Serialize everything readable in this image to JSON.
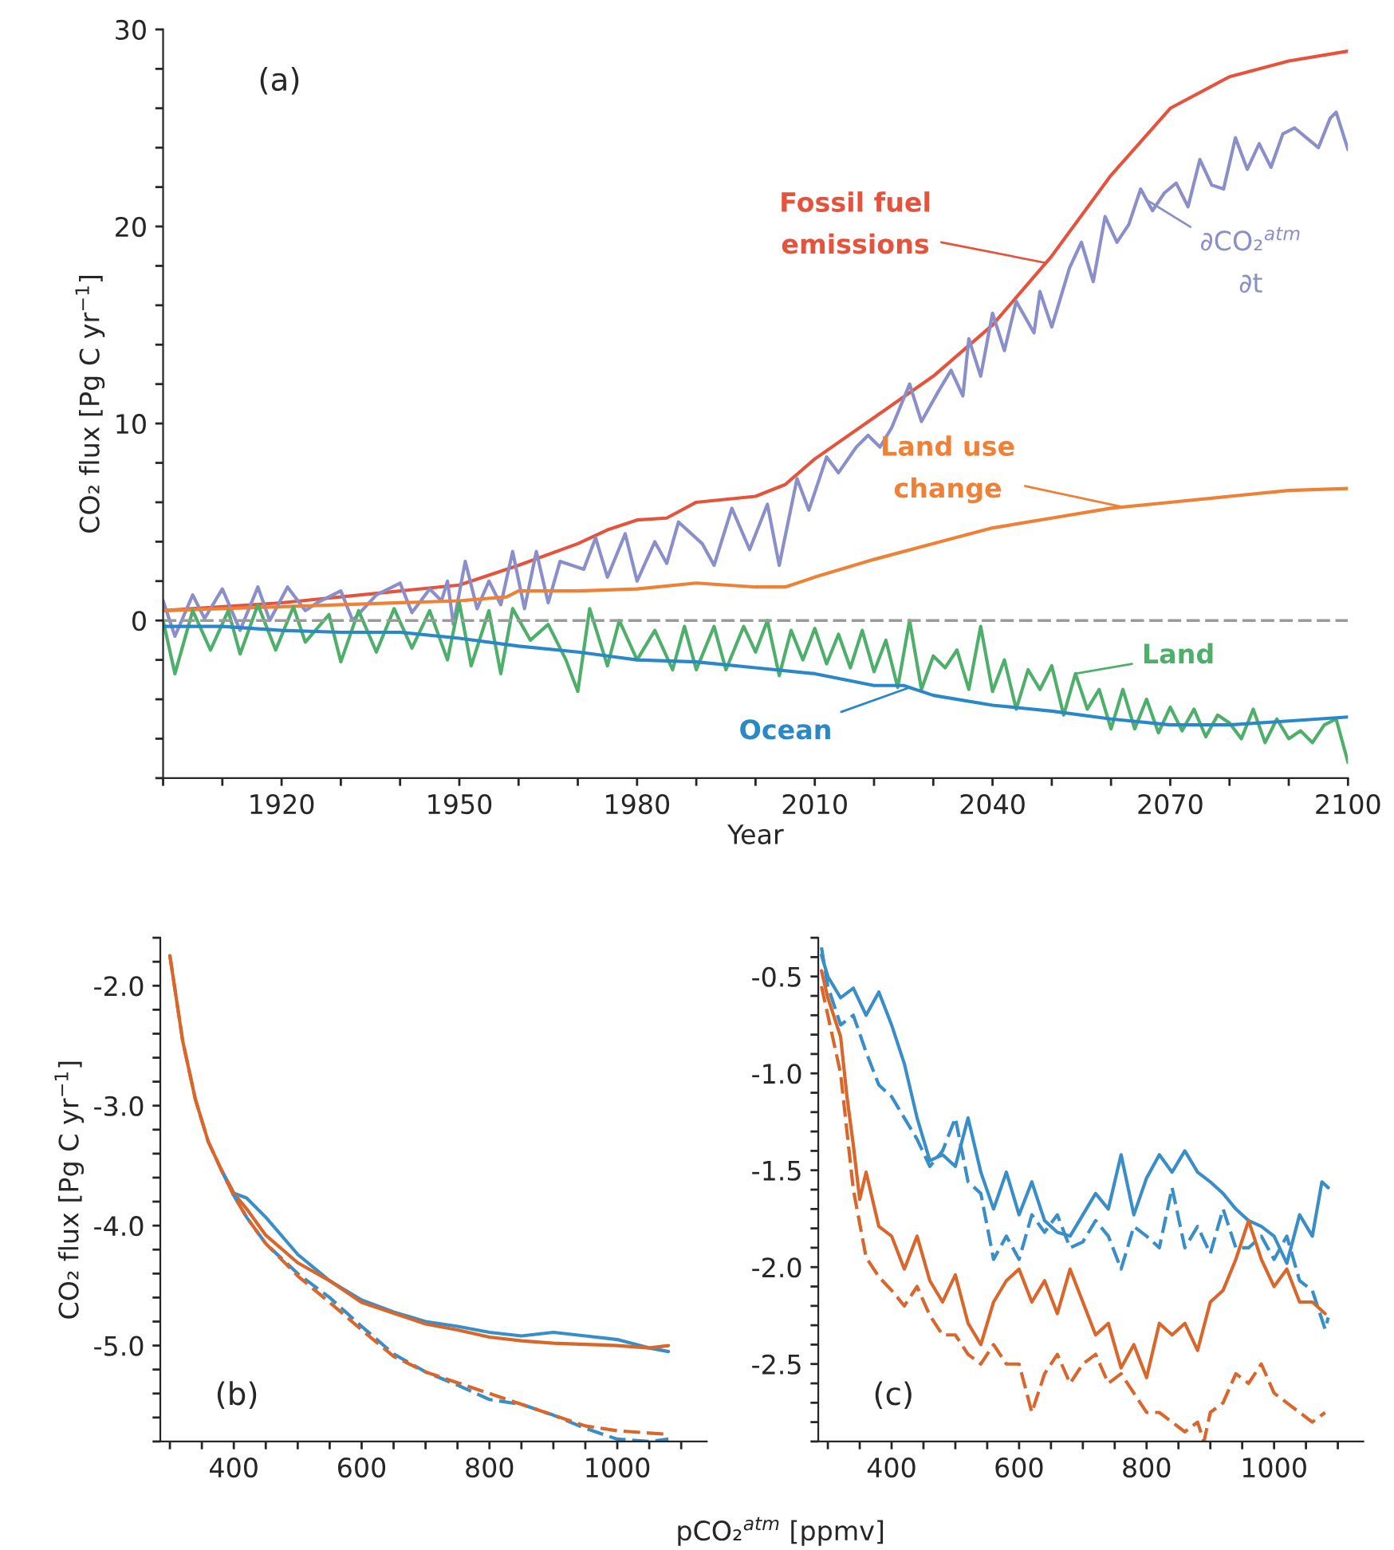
{
  "chart_data": [
    {
      "type": "line",
      "xlabel": "Year",
      "ylabel": "CO₂ flux [Pg C yr$^{−1}$]",
      "xlim": [
        1900,
        2100
      ],
      "ylim": [
        -8,
        30
      ],
      "xticks": [
        {
          "value": 1900,
          "label": null
        },
        {
          "value": 1910,
          "label": null
        },
        1920,
        {
          "value": 1930,
          "label": null
        },
        {
          "value": 1940,
          "label": null
        },
        1950,
        {
          "value": 1960,
          "label": null
        },
        {
          "value": 1970,
          "label": null
        },
        1980,
        {
          "value": 1990,
          "label": null
        },
        {
          "value": 2000,
          "label": null
        },
        2010,
        {
          "value": 2020,
          "label": null
        },
        {
          "value": 2030,
          "label": null
        },
        2040,
        {
          "value": 2050,
          "label": null
        },
        {
          "value": 2060,
          "label": null
        },
        2070,
        {
          "value": 2080,
          "label": null
        },
        {
          "value": 2090,
          "label": null
        },
        2100
      ],
      "yticks": [
        {
          "value": -8,
          "label": null
        },
        {
          "value": -6,
          "label": null
        },
        {
          "value": -4,
          "label": null
        },
        {
          "value": -2,
          "label": null
        },
        0,
        {
          "value": 2,
          "label": null
        },
        {
          "value": 4,
          "label": null
        },
        {
          "value": 6,
          "label": null
        },
        {
          "value": 8,
          "label": null
        },
        10,
        {
          "value": 12,
          "label": null
        },
        {
          "value": 14,
          "label": null
        },
        {
          "value": 16,
          "label": null
        },
        {
          "value": 18,
          "label": null
        },
        20,
        {
          "value": 22,
          "label": null
        },
        {
          "value": 24,
          "label": null
        },
        {
          "value": 26,
          "label": null
        },
        {
          "value": 28,
          "label": null
        },
        30
      ],
      "ref_lines": [
        {
          "axis": "y",
          "value": 0,
          "color": "#9a9a9a",
          "line_style": "dashed"
        }
      ],
      "annotations": [
        "(a)"
      ],
      "series": [
        {
          "name": "Fossil fuel\nemissions",
          "color": "#e5533c",
          "x": [
            1900,
            1920,
            1950,
            1960,
            1970,
            1975,
            1980,
            1985,
            1990,
            2000,
            2005,
            2010,
            2020,
            2030,
            2040,
            2050,
            2060,
            2070,
            2080,
            2090,
            2100
          ],
          "values": [
            0.5,
            0.9,
            1.8,
            2.8,
            3.9,
            4.6,
            5.1,
            5.2,
            6.0,
            6.3,
            6.9,
            8.2,
            10.3,
            12.4,
            15.0,
            18.5,
            22.6,
            26.0,
            27.6,
            28.4,
            28.9
          ]
        },
        {
          "name": "∂CO₂$^{atm}$\n∂t",
          "color": "#8a8fc9",
          "x": [
            1900,
            1902,
            1905,
            1907,
            1910,
            1913,
            1916,
            1918,
            1921,
            1924,
            1926,
            1930,
            1932,
            1936,
            1940,
            1942,
            1945,
            1947,
            1948,
            1949,
            1951,
            1953,
            1955,
            1957,
            1959,
            1961,
            1963,
            1965,
            1967,
            1971,
            1973,
            1975,
            1978,
            1980,
            1983,
            1985,
            1987,
            1991,
            1993,
            1996,
            1999,
            2002,
            2004,
            2007,
            2009,
            2012,
            2014,
            2017,
            2019,
            2021,
            2023,
            2026,
            2028,
            2031,
            2033,
            2035,
            2036,
            2038,
            2040,
            2042,
            2044,
            2047,
            2048,
            2050,
            2053,
            2055,
            2057,
            2059,
            2061,
            2063,
            2065,
            2067,
            2069,
            2071,
            2073,
            2075,
            2077,
            2079,
            2081,
            2083,
            2085,
            2087,
            2089,
            2091,
            2093,
            2095,
            2097,
            2098,
            2100
          ],
          "values": [
            1.0,
            -0.8,
            1.3,
            0.1,
            1.6,
            -0.5,
            1.7,
            0.0,
            1.7,
            0.5,
            0.9,
            1.5,
            0.0,
            1.3,
            1.9,
            0.4,
            1.6,
            1.0,
            2.0,
            -0.2,
            3.0,
            0.6,
            2.0,
            0.8,
            3.5,
            0.6,
            3.5,
            0.9,
            3.0,
            2.6,
            4.2,
            2.2,
            4.4,
            2.0,
            4.0,
            2.9,
            5.0,
            3.9,
            2.8,
            5.7,
            3.6,
            5.9,
            2.8,
            7.2,
            5.6,
            8.3,
            7.5,
            8.8,
            9.4,
            8.8,
            9.8,
            12.0,
            10.1,
            11.7,
            12.7,
            11.4,
            14.3,
            12.4,
            15.6,
            13.7,
            16.2,
            14.6,
            16.7,
            14.9,
            17.9,
            19.2,
            17.2,
            20.5,
            19.2,
            20.1,
            21.9,
            20.8,
            21.7,
            22.2,
            21.0,
            23.4,
            22.1,
            21.9,
            24.5,
            22.9,
            24.2,
            23.0,
            24.7,
            25.0,
            24.5,
            24.0,
            25.5,
            25.8,
            23.9
          ]
        },
        {
          "name": "Land use\nchange",
          "color": "#ee8135",
          "x": [
            1900,
            1950,
            1958,
            1960,
            1970,
            1980,
            1990,
            2000,
            2005,
            2010,
            2020,
            2030,
            2040,
            2050,
            2060,
            2070,
            2080,
            2090,
            2100
          ],
          "values": [
            0.5,
            1.0,
            1.2,
            1.5,
            1.5,
            1.6,
            1.9,
            1.7,
            1.7,
            2.2,
            3.1,
            3.9,
            4.7,
            5.2,
            5.7,
            6.0,
            6.3,
            6.6,
            6.7
          ]
        },
        {
          "name": "Land",
          "color": "#4daf6a",
          "x": [
            1900,
            1902,
            1905,
            1908,
            1911,
            1913,
            1916,
            1919,
            1922,
            1924,
            1928,
            1930,
            1933,
            1936,
            1939,
            1942,
            1945,
            1948,
            1950,
            1952,
            1955,
            1957,
            1959,
            1962,
            1965,
            1968,
            1970,
            1972,
            1975,
            1977,
            1980,
            1983,
            1986,
            1988,
            1990,
            1993,
            1995,
            1998,
            2000,
            2002,
            2004,
            2006,
            2008,
            2010,
            2012,
            2014,
            2016,
            2018,
            2020,
            2022,
            2024,
            2026,
            2028,
            2030,
            2032,
            2034,
            2036,
            2038,
            2040,
            2042,
            2044,
            2046,
            2048,
            2050,
            2052,
            2054,
            2056,
            2058,
            2060,
            2062,
            2064,
            2066,
            2068,
            2070,
            2072,
            2074,
            2076,
            2078,
            2080,
            2082,
            2084,
            2086,
            2088,
            2090,
            2092,
            2094,
            2096,
            2098,
            2100
          ],
          "values": [
            0.0,
            -2.7,
            0.5,
            -1.5,
            0.5,
            -1.7,
            0.8,
            -1.5,
            0.7,
            -1.1,
            0.3,
            -2.1,
            0.5,
            -1.6,
            0.6,
            -1.4,
            0.5,
            -2.0,
            0.9,
            -2.3,
            0.5,
            -2.7,
            0.6,
            -1.0,
            -0.2,
            -2.0,
            -3.6,
            0.6,
            -2.3,
            0.0,
            -2.0,
            -0.5,
            -2.5,
            -0.3,
            -2.5,
            -0.3,
            -2.5,
            -0.3,
            -1.6,
            0.0,
            -2.8,
            -0.5,
            -2.0,
            -0.4,
            -2.2,
            -0.7,
            -2.4,
            -0.5,
            -2.6,
            -1.0,
            -3.4,
            0.0,
            -3.5,
            -1.8,
            -2.4,
            -1.5,
            -3.5,
            -0.3,
            -3.6,
            -2.0,
            -4.5,
            -2.5,
            -3.5,
            -2.3,
            -4.8,
            -2.7,
            -4.5,
            -3.5,
            -5.5,
            -3.5,
            -5.5,
            -4.0,
            -5.7,
            -4.4,
            -5.6,
            -4.5,
            -5.9,
            -4.8,
            -5.2,
            -6.0,
            -4.5,
            -6.2,
            -5.0,
            -6.0,
            -5.6,
            -6.2,
            -5.3,
            -5.0,
            -7.2
          ]
        },
        {
          "name": "Ocean",
          "color": "#2a87c8",
          "x": [
            1900,
            1910,
            1920,
            1930,
            1940,
            1950,
            1960,
            1970,
            1980,
            1990,
            2000,
            2010,
            2020,
            2025,
            2030,
            2040,
            2050,
            2060,
            2070,
            2080,
            2090,
            2100
          ],
          "values": [
            -0.3,
            -0.3,
            -0.5,
            -0.6,
            -0.6,
            -0.9,
            -1.3,
            -1.6,
            -2.0,
            -2.1,
            -2.4,
            -2.7,
            -3.3,
            -3.3,
            -3.8,
            -4.3,
            -4.6,
            -5.0,
            -5.3,
            -5.3,
            -5.1,
            -4.9
          ]
        }
      ]
    },
    {
      "type": "line",
      "xlabel": "pCO₂$^{atm}$ [ppmv]",
      "ylabel": "CO₂ flux [Pg C yr$^{−1}$]",
      "xlim": [
        285,
        1140
      ],
      "ylim": [
        -5.8,
        -1.6
      ],
      "xticks": [
        {
          "value": 300,
          "label": null
        },
        {
          "value": 350,
          "label": null
        },
        400,
        {
          "value": 450,
          "label": null
        },
        {
          "value": 500,
          "label": null
        },
        {
          "value": 550,
          "label": null
        },
        600,
        {
          "value": 650,
          "label": null
        },
        {
          "value": 700,
          "label": null
        },
        {
          "value": 750,
          "label": null
        },
        800,
        {
          "value": 850,
          "label": null
        },
        {
          "value": 900,
          "label": null
        },
        {
          "value": 950,
          "label": null
        },
        1000,
        {
          "value": 1050,
          "label": null
        },
        {
          "value": 1100,
          "label": null
        }
      ],
      "yticks": [
        {
          "value": -5.8,
          "label": null
        },
        {
          "value": -5.6,
          "label": null
        },
        {
          "value": -5.4,
          "label": null
        },
        {
          "value": -5.2,
          "label": null
        },
        {
          "value": -5.0,
          "label": "-5.0"
        },
        {
          "value": -4.8,
          "label": null
        },
        {
          "value": -4.6,
          "label": null
        },
        {
          "value": -4.4,
          "label": null
        },
        {
          "value": -4.2,
          "label": null
        },
        {
          "value": -4.0,
          "label": "-4.0"
        },
        {
          "value": -3.8,
          "label": null
        },
        {
          "value": -3.6,
          "label": null
        },
        {
          "value": -3.4,
          "label": null
        },
        {
          "value": -3.2,
          "label": null
        },
        {
          "value": -3.0,
          "label": "-3.0"
        },
        {
          "value": -2.8,
          "label": null
        },
        {
          "value": -2.6,
          "label": null
        },
        {
          "value": -2.4,
          "label": null
        },
        {
          "value": -2.2,
          "label": null
        },
        {
          "value": -2.0,
          "label": "-2.0"
        },
        {
          "value": -1.8,
          "label": null
        },
        {
          "value": -1.6,
          "label": null
        }
      ],
      "annotations": [
        "(b)"
      ],
      "series": [
        {
          "color": "#3a8ec8",
          "line_style": "solid",
          "x": [
            380,
            400,
            420,
            450,
            500,
            550,
            600,
            650,
            700,
            750,
            800,
            850,
            900,
            950,
            1000,
            1050,
            1080
          ],
          "values": [
            -3.53,
            -3.73,
            -3.77,
            -3.93,
            -4.24,
            -4.46,
            -4.62,
            -4.72,
            -4.8,
            -4.84,
            -4.89,
            -4.92,
            -4.89,
            -4.92,
            -4.95,
            -5.02,
            -5.05
          ]
        },
        {
          "color": "#d9662b",
          "line_style": "solid",
          "x": [
            300,
            320,
            340,
            360,
            380,
            400,
            420,
            450,
            500,
            550,
            600,
            650,
            700,
            750,
            800,
            850,
            900,
            950,
            1000,
            1050,
            1080
          ],
          "values": [
            -1.75,
            -2.46,
            -2.95,
            -3.3,
            -3.53,
            -3.73,
            -3.86,
            -4.08,
            -4.31,
            -4.46,
            -4.64,
            -4.73,
            -4.82,
            -4.87,
            -4.93,
            -4.96,
            -4.98,
            -4.99,
            -5.0,
            -5.02,
            -5.0
          ]
        },
        {
          "color": "#3a8ec8",
          "line_style": "dashed",
          "x": [
            380,
            400,
            420,
            450,
            500,
            550,
            600,
            650,
            700,
            750,
            800,
            850,
            900,
            950,
            1000,
            1050,
            1080
          ],
          "values": [
            -3.53,
            -3.75,
            -3.93,
            -4.15,
            -4.4,
            -4.6,
            -4.84,
            -5.07,
            -5.22,
            -5.33,
            -5.45,
            -5.49,
            -5.58,
            -5.69,
            -5.78,
            -5.8,
            -5.78
          ]
        },
        {
          "color": "#d9662b",
          "line_style": "dashed",
          "x": [
            300,
            320,
            340,
            360,
            380,
            400,
            420,
            450,
            500,
            550,
            600,
            650,
            700,
            750,
            800,
            850,
            900,
            950,
            1000,
            1050,
            1080
          ],
          "values": [
            -1.75,
            -2.46,
            -2.95,
            -3.3,
            -3.53,
            -3.75,
            -3.93,
            -4.15,
            -4.42,
            -4.64,
            -4.87,
            -5.09,
            -5.22,
            -5.31,
            -5.4,
            -5.49,
            -5.58,
            -5.67,
            -5.71,
            -5.73,
            -5.74
          ]
        }
      ]
    },
    {
      "type": "line",
      "xlim": [
        285,
        1140
      ],
      "ylim": [
        -2.9,
        -0.3
      ],
      "xticks": [
        {
          "value": 300,
          "label": null
        },
        {
          "value": 350,
          "label": null
        },
        400,
        {
          "value": 450,
          "label": null
        },
        {
          "value": 500,
          "label": null
        },
        {
          "value": 550,
          "label": null
        },
        600,
        {
          "value": 650,
          "label": null
        },
        {
          "value": 700,
          "label": null
        },
        {
          "value": 750,
          "label": null
        },
        800,
        {
          "value": 850,
          "label": null
        },
        {
          "value": 900,
          "label": null
        },
        {
          "value": 950,
          "label": null
        },
        1000,
        {
          "value": 1050,
          "label": null
        },
        {
          "value": 1100,
          "label": null
        }
      ],
      "yticks": [
        {
          "value": -2.9,
          "label": null
        },
        {
          "value": -2.8,
          "label": null
        },
        {
          "value": -2.7,
          "label": null
        },
        {
          "value": -2.6,
          "label": null
        },
        {
          "value": -2.5,
          "label": "-2.5"
        },
        {
          "value": -2.4,
          "label": null
        },
        {
          "value": -2.3,
          "label": null
        },
        {
          "value": -2.2,
          "label": null
        },
        {
          "value": -2.1,
          "label": null
        },
        {
          "value": -2.0,
          "label": "-2.0"
        },
        {
          "value": -1.9,
          "label": null
        },
        {
          "value": -1.8,
          "label": null
        },
        {
          "value": -1.7,
          "label": null
        },
        {
          "value": -1.6,
          "label": null
        },
        {
          "value": -1.5,
          "label": "-1.5"
        },
        {
          "value": -1.4,
          "label": null
        },
        {
          "value": -1.3,
          "label": null
        },
        {
          "value": -1.2,
          "label": null
        },
        {
          "value": -1.1,
          "label": null
        },
        {
          "value": -1.0,
          "label": "-1.0"
        },
        {
          "value": -0.9,
          "label": null
        },
        {
          "value": -0.8,
          "label": null
        },
        {
          "value": -0.7,
          "label": null
        },
        {
          "value": -0.6,
          "label": null
        },
        {
          "value": -0.5,
          "label": "-0.5"
        },
        {
          "value": -0.4,
          "label": null
        },
        {
          "value": -0.3,
          "label": null
        }
      ],
      "annotations": [
        "(c)"
      ],
      "series": [
        {
          "color": "#3a8ec8",
          "line_style": "solid",
          "x": [
            290,
            300,
            320,
            340,
            360,
            380,
            400,
            420,
            440,
            460,
            480,
            500,
            520,
            540,
            560,
            580,
            600,
            620,
            640,
            660,
            680,
            700,
            720,
            740,
            760,
            780,
            800,
            820,
            840,
            860,
            880,
            900,
            920,
            940,
            960,
            980,
            1000,
            1020,
            1040,
            1060,
            1075,
            1085
          ],
          "values": [
            -0.39,
            -0.5,
            -0.61,
            -0.56,
            -0.7,
            -0.58,
            -0.75,
            -0.95,
            -1.23,
            -1.45,
            -1.42,
            -1.48,
            -1.23,
            -1.51,
            -1.7,
            -1.51,
            -1.73,
            -1.56,
            -1.76,
            -1.82,
            -1.84,
            -1.73,
            -1.62,
            -1.7,
            -1.42,
            -1.73,
            -1.54,
            -1.42,
            -1.51,
            -1.4,
            -1.51,
            -1.56,
            -1.62,
            -1.7,
            -1.76,
            -1.79,
            -1.84,
            -1.98,
            -1.73,
            -1.84,
            -1.56,
            -1.59
          ]
        },
        {
          "color": "#3a8ec8",
          "line_style": "dashed",
          "x": [
            290,
            300,
            320,
            340,
            360,
            380,
            400,
            420,
            440,
            460,
            480,
            500,
            520,
            540,
            560,
            580,
            600,
            620,
            640,
            660,
            680,
            700,
            720,
            740,
            760,
            780,
            800,
            820,
            840,
            860,
            880,
            900,
            920,
            940,
            960,
            980,
            1000,
            1020,
            1040,
            1060,
            1080,
            1085
          ],
          "values": [
            -0.35,
            -0.55,
            -0.75,
            -0.7,
            -0.89,
            -1.06,
            -1.12,
            -1.23,
            -1.34,
            -1.48,
            -1.4,
            -1.23,
            -1.56,
            -1.62,
            -1.96,
            -1.84,
            -1.96,
            -1.73,
            -1.82,
            -1.73,
            -1.9,
            -1.87,
            -1.76,
            -1.84,
            -2.01,
            -1.79,
            -1.84,
            -1.9,
            -1.59,
            -1.9,
            -1.79,
            -1.93,
            -1.7,
            -1.9,
            -1.9,
            -1.84,
            -1.96,
            -1.84,
            -2.07,
            -2.12,
            -2.32,
            -2.26
          ]
        },
        {
          "color": "#d9662b",
          "line_style": "solid",
          "x": [
            290,
            300,
            320,
            330,
            340,
            350,
            360,
            380,
            400,
            420,
            440,
            460,
            480,
            500,
            520,
            540,
            560,
            580,
            600,
            620,
            640,
            660,
            680,
            700,
            720,
            740,
            760,
            780,
            800,
            820,
            840,
            860,
            880,
            900,
            920,
            940,
            960,
            980,
            1000,
            1020,
            1040,
            1060,
            1080
          ],
          "values": [
            -0.47,
            -0.61,
            -0.81,
            -1.12,
            -1.37,
            -1.65,
            -1.51,
            -1.79,
            -1.84,
            -2.01,
            -1.84,
            -2.07,
            -2.18,
            -2.04,
            -2.29,
            -2.4,
            -2.18,
            -2.07,
            -2.01,
            -2.18,
            -2.07,
            -2.24,
            -2.01,
            -2.18,
            -2.35,
            -2.29,
            -2.52,
            -2.4,
            -2.57,
            -2.29,
            -2.35,
            -2.29,
            -2.43,
            -2.18,
            -2.12,
            -1.96,
            -1.76,
            -1.96,
            -2.1,
            -2.01,
            -2.18,
            -2.18,
            -2.24
          ]
        },
        {
          "color": "#d9662b",
          "line_style": "dashed",
          "x": [
            290,
            300,
            320,
            340,
            360,
            380,
            400,
            420,
            440,
            460,
            480,
            500,
            520,
            540,
            560,
            580,
            600,
            620,
            640,
            660,
            680,
            700,
            720,
            740,
            760,
            780,
            800,
            820,
            840,
            860,
            880,
            890,
            900,
            920,
            940,
            960,
            980,
            1000,
            1020,
            1040,
            1060,
            1080
          ],
          "values": [
            -0.55,
            -0.7,
            -1.0,
            -1.6,
            -1.95,
            -2.05,
            -2.12,
            -2.2,
            -2.1,
            -2.25,
            -2.35,
            -2.35,
            -2.45,
            -2.5,
            -2.4,
            -2.5,
            -2.5,
            -2.75,
            -2.55,
            -2.45,
            -2.6,
            -2.5,
            -2.45,
            -2.6,
            -2.55,
            -2.65,
            -2.75,
            -2.75,
            -2.8,
            -2.85,
            -2.8,
            -2.9,
            -2.75,
            -2.7,
            -2.55,
            -2.6,
            -2.5,
            -2.65,
            -2.7,
            -2.75,
            -2.8,
            -2.75
          ]
        }
      ]
    }
  ]
}
